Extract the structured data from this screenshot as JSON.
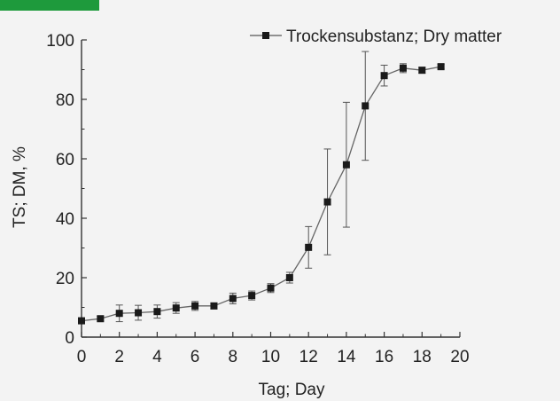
{
  "header": {
    "tab_label": "",
    "tab_color": "#1e9a3c"
  },
  "chart_data": {
    "type": "line",
    "title": "",
    "xlabel": "Tag; Day",
    "ylabel": "TS; DM, %",
    "xlim": [
      0,
      20
    ],
    "ylim": [
      0,
      100
    ],
    "xticks": [
      0,
      2,
      4,
      6,
      8,
      10,
      12,
      14,
      16,
      18,
      20
    ],
    "yticks": [
      0,
      20,
      40,
      60,
      80,
      100
    ],
    "grid": false,
    "legend_position": "top-right",
    "series": [
      {
        "name": "Trockensubstanz; Dry matter",
        "marker": "square",
        "color": "#1a1a1a",
        "x": [
          0,
          1,
          2,
          3,
          4,
          5,
          6,
          7,
          8,
          9,
          10,
          11,
          12,
          13,
          14,
          15,
          16,
          17,
          18,
          19
        ],
        "y": [
          5.5,
          6.2,
          8.0,
          8.2,
          8.6,
          9.8,
          10.5,
          10.5,
          13.0,
          14.0,
          16.5,
          20.0,
          30.2,
          45.5,
          58.0,
          77.8,
          88.0,
          90.5,
          89.8,
          91.0
        ],
        "error": [
          0.8,
          0.8,
          2.8,
          2.5,
          2.2,
          1.8,
          1.5,
          1.0,
          1.8,
          1.5,
          1.5,
          1.8,
          7.0,
          17.8,
          21.0,
          18.3,
          3.5,
          1.5,
          1.0,
          0.8
        ]
      }
    ]
  }
}
